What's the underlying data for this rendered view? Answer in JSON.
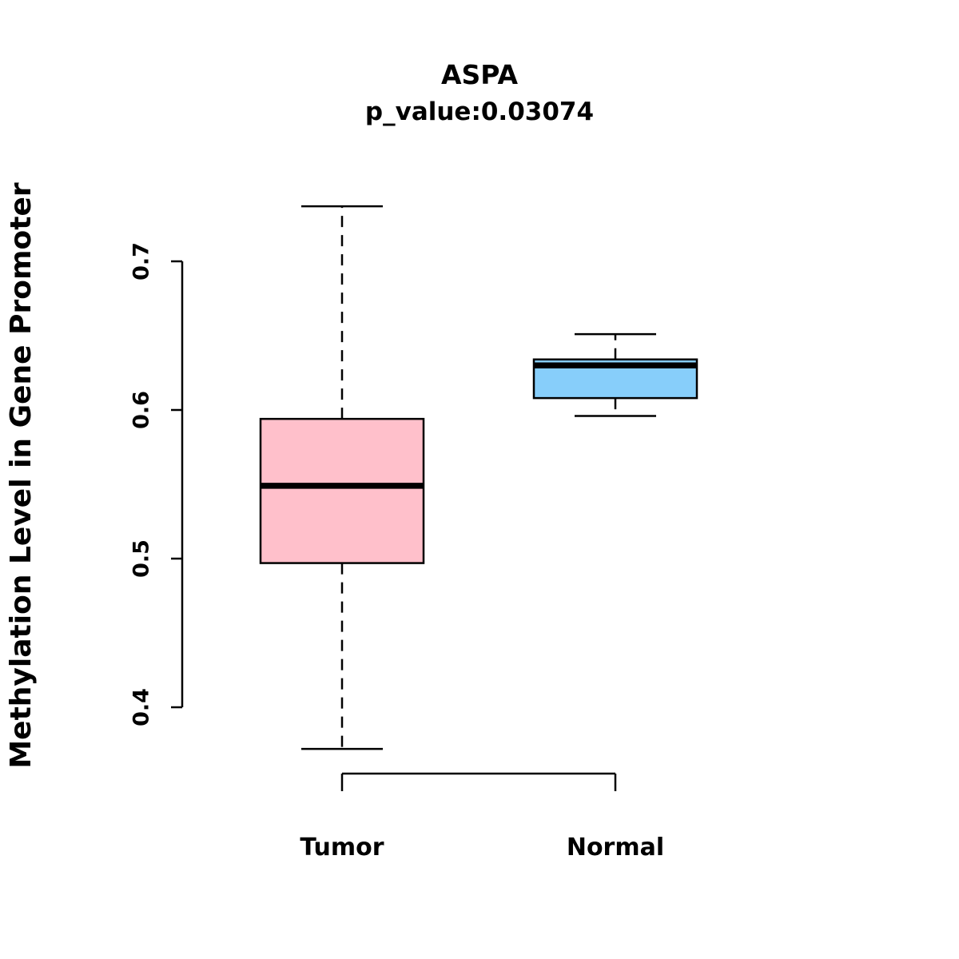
{
  "chart_data": {
    "type": "boxplot",
    "title": "ASPA",
    "subtitle": "p_value:0.03074",
    "ylabel": "Methylation Level in Gene Promoter",
    "xlabel": "",
    "categories": [
      "Tumor",
      "Normal"
    ],
    "series": [
      {
        "name": "Tumor",
        "whisker_low": 0.372,
        "q1": 0.497,
        "median": 0.549,
        "q3": 0.594,
        "whisker_high": 0.737,
        "color": "#FFC0CB"
      },
      {
        "name": "Normal",
        "whisker_low": 0.596,
        "q1": 0.608,
        "median": 0.63,
        "q3": 0.634,
        "whisker_high": 0.651,
        "color": "#87CEFA"
      }
    ],
    "yticks": [
      0.4,
      0.5,
      0.6,
      0.7
    ],
    "ylim": [
      0.35,
      0.76
    ],
    "grid": false,
    "legend": "none",
    "colors": {
      "box_border": "#000000",
      "median": "#000000",
      "axis": "#000000",
      "background": "#FFFFFF"
    }
  }
}
